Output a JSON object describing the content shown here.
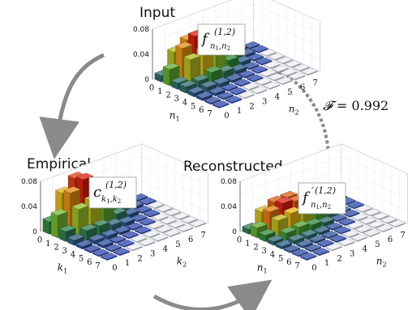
{
  "panels": [
    {
      "id": "input",
      "title": "Input",
      "box": {
        "main": "f",
        "sup": "(1,2)",
        "sub1": "n",
        "sub1b": "1",
        "comma": ",",
        "sub2": "n",
        "sub2b": "2",
        "prime": ""
      },
      "x_axis": {
        "label": "n",
        "sub": "1"
      },
      "y_axis": {
        "label": "n",
        "sub": "2"
      },
      "z_ticks": [
        "0.08",
        "0.04",
        "0"
      ],
      "ticks": [
        "0",
        "1",
        "2",
        "3",
        "4",
        "5",
        "6",
        "7"
      ],
      "heights": [
        [
          0.01,
          0.04,
          0.052,
          0.052,
          0.038,
          0.02,
          0.006,
          0.002
        ],
        [
          0.026,
          0.052,
          0.064,
          0.056,
          0.034,
          0.014,
          0.004,
          0.001
        ],
        [
          0.01,
          0.04,
          0.046,
          0.034,
          0.016,
          0.006,
          0.002,
          0.0
        ],
        [
          0.01,
          0.012,
          0.018,
          0.012,
          0.006,
          0.002,
          0.001,
          0.0
        ],
        [
          0.006,
          0.008,
          0.006,
          0.004,
          0.002,
          0.001,
          0.0,
          0.0
        ],
        [
          0.004,
          0.004,
          0.002,
          0.001,
          0.001,
          0.0,
          0.0,
          0.0
        ],
        [
          0.002,
          0.002,
          0.001,
          0.0,
          0.0,
          0.0,
          0.0,
          0.0
        ],
        [
          0.001,
          0.001,
          0.0,
          0.0,
          0.0,
          0.0,
          0.0,
          0.0
        ]
      ]
    },
    {
      "id": "empirical",
      "title": "Empirical",
      "box": {
        "main": "c",
        "sup": "(1,2)",
        "sub1": "k",
        "sub1b": "1",
        "comma": ",",
        "sub2": "k",
        "sub2b": "2",
        "prime": ""
      },
      "x_axis": {
        "label": "k",
        "sub": "1"
      },
      "y_axis": {
        "label": "k",
        "sub": "2"
      },
      "z_ticks": [
        "0.08",
        "0.04",
        "0"
      ],
      "ticks": [
        "0",
        "1",
        "2",
        "3",
        "4",
        "5",
        "6",
        "7"
      ],
      "heights": [
        [
          0.02,
          0.058,
          0.074,
          0.06,
          0.04,
          0.018,
          0.006,
          0.002
        ],
        [
          0.036,
          0.064,
          0.078,
          0.054,
          0.03,
          0.01,
          0.004,
          0.001
        ],
        [
          0.016,
          0.044,
          0.05,
          0.03,
          0.014,
          0.006,
          0.002,
          0.0
        ],
        [
          0.008,
          0.016,
          0.016,
          0.01,
          0.006,
          0.002,
          0.001,
          0.0
        ],
        [
          0.004,
          0.006,
          0.006,
          0.004,
          0.002,
          0.001,
          0.0,
          0.0
        ],
        [
          0.002,
          0.004,
          0.002,
          0.001,
          0.001,
          0.0,
          0.0,
          0.0
        ],
        [
          0.001,
          0.002,
          0.001,
          0.0,
          0.0,
          0.0,
          0.0,
          0.0
        ],
        [
          0.001,
          0.001,
          0.0,
          0.0,
          0.0,
          0.0,
          0.0,
          0.0
        ]
      ]
    },
    {
      "id": "reconstructed",
      "title": "Reconstructed",
      "box": {
        "main": "f",
        "sup": "(1,2)",
        "sub1": "n",
        "sub1b": "1",
        "comma": ",",
        "sub2": "n",
        "sub2b": "2",
        "prime": "′"
      },
      "x_axis": {
        "label": "n",
        "sub": "1"
      },
      "y_axis": {
        "label": "n",
        "sub": "2"
      },
      "z_ticks": [
        "0.08",
        "0.04",
        "0"
      ],
      "ticks": [
        "0",
        "1",
        "2",
        "3",
        "4",
        "5",
        "6",
        "7"
      ],
      "heights": [
        [
          0.008,
          0.028,
          0.036,
          0.036,
          0.028,
          0.016,
          0.006,
          0.002
        ],
        [
          0.016,
          0.034,
          0.04,
          0.036,
          0.024,
          0.01,
          0.004,
          0.001
        ],
        [
          0.01,
          0.026,
          0.03,
          0.024,
          0.014,
          0.006,
          0.002,
          0.001
        ],
        [
          0.006,
          0.012,
          0.014,
          0.01,
          0.006,
          0.002,
          0.001,
          0.0
        ],
        [
          0.004,
          0.006,
          0.006,
          0.004,
          0.002,
          0.001,
          0.0,
          0.0
        ],
        [
          0.002,
          0.003,
          0.003,
          0.002,
          0.001,
          0.0,
          0.0,
          0.0
        ],
        [
          0.001,
          0.002,
          0.001,
          0.001,
          0.0,
          0.0,
          0.0,
          0.0
        ],
        [
          0.001,
          0.001,
          0.0,
          0.0,
          0.0,
          0.0,
          0.0,
          0.0
        ]
      ]
    }
  ],
  "fidelity": {
    "symbol": "𝓕",
    "equals": " = ",
    "value": "0.992"
  },
  "colors": {
    "arrow": "#8a8a8a",
    "bar_scale": [
      "#2a3fb8",
      "#2f8a3a",
      "#7ebf2a",
      "#e6b515",
      "#d81e10"
    ]
  }
}
